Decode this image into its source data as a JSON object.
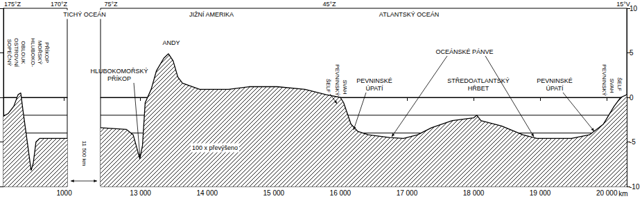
{
  "chart_data": [
    {
      "type": "area",
      "x": [
        0,
        80,
        170,
        240,
        285,
        320,
        400,
        455,
        490,
        535,
        595,
        1050
      ],
      "values": [
        -2.1,
        -1.8,
        -1.0,
        0.3,
        0.5,
        -1.4,
        -5.4,
        -8.2,
        -7.4,
        -5.0,
        -4.6,
        -4.6
      ],
      "color": "#000000",
      "xlim": [
        0,
        1050
      ],
      "xticks": [
        1000
      ],
      "ylim": [
        -10,
        10
      ],
      "yticks": [
        10,
        5,
        0,
        -5,
        -10
      ],
      "reference_lines": [
        0,
        -2,
        -4
      ],
      "grid": false,
      "tick_labels": "x",
      "annotations": [
        "175°Z",
        "170°Z",
        "SOPEČNÝ",
        "OSTROVNÍ",
        "OBLOUK",
        "HLUBOKO-",
        "MOŘSKÝ",
        "PŘÍKOP"
      ],
      "break_label": "11 500 km"
    },
    {
      "type": "area",
      "x": [
        12400,
        12790,
        12890,
        12950,
        12990,
        13030,
        13070,
        13160,
        13240,
        13350,
        13420,
        13490,
        13560,
        13630,
        13890,
        14320,
        14630,
        15050,
        15470,
        15790,
        16000,
        16050,
        16160,
        16260,
        16420,
        16740,
        16950,
        17160,
        17370,
        17680,
        18000,
        18050,
        18110,
        18420,
        18740,
        18950,
        19470,
        19740,
        19950,
        20110,
        20210,
        20300
      ],
      "values": [
        -3.4,
        -3.6,
        -4.2,
        -5.8,
        -6.9,
        -5.4,
        -0.6,
        0.9,
        3.0,
        4.4,
        4.9,
        4.1,
        2.3,
        1.6,
        0.9,
        0.9,
        1.2,
        1.2,
        0.9,
        0.3,
        0.0,
        -0.6,
        -3.0,
        -3.8,
        -4.2,
        -4.5,
        -4.6,
        -4.2,
        -3.4,
        -2.6,
        -2.3,
        -2.0,
        -2.6,
        -3.2,
        -4.2,
        -4.6,
        -4.6,
        -4.2,
        -3.0,
        -1.0,
        0.0,
        0.3
      ],
      "color": "#000000",
      "xlim": [
        12400,
        20300
      ],
      "xticks": [
        {
          "value": 13000,
          "label": "13 000"
        },
        {
          "value": 14000,
          "label": "14 000"
        },
        {
          "value": 15000,
          "label": "15 000"
        },
        {
          "value": 16000,
          "label": "16 000"
        },
        {
          "value": 17000,
          "label": "17 000"
        },
        {
          "value": 18000,
          "label": "18 000"
        },
        {
          "value": 19000,
          "label": "19 000"
        },
        {
          "value": 20000,
          "label": "20 000"
        }
      ],
      "ylim": [
        -10,
        10
      ],
      "yticks": [
        10,
        5,
        0,
        -5,
        -10
      ],
      "reference_lines": [
        0,
        -2,
        -4
      ],
      "grid": false,
      "x_label": "km",
      "annotations": [
        "75°Z",
        "45°Z",
        "15°V",
        "TICHÝ OCEÁN",
        "JIŽNÍ AMERIKA",
        "ATLANTSKÝ OCEÁN",
        "ANDY",
        "HLUBOKOMOŘSKÝ\nPŘÍKOP",
        "100 x převýšeno",
        "ŠELF",
        "PEVNINSKÝ",
        "SVAH",
        "PEVNINSKÉ\nÚPATÍ",
        "OCEÁNSKÉ PÁNVE",
        "STŘEDOATLANTSKÝ\nHŘBET",
        "PEVNINSKÉ\nÚPATÍ",
        "PEVNINSKÝ",
        "SVAH",
        "ŠELF"
      ]
    }
  ]
}
